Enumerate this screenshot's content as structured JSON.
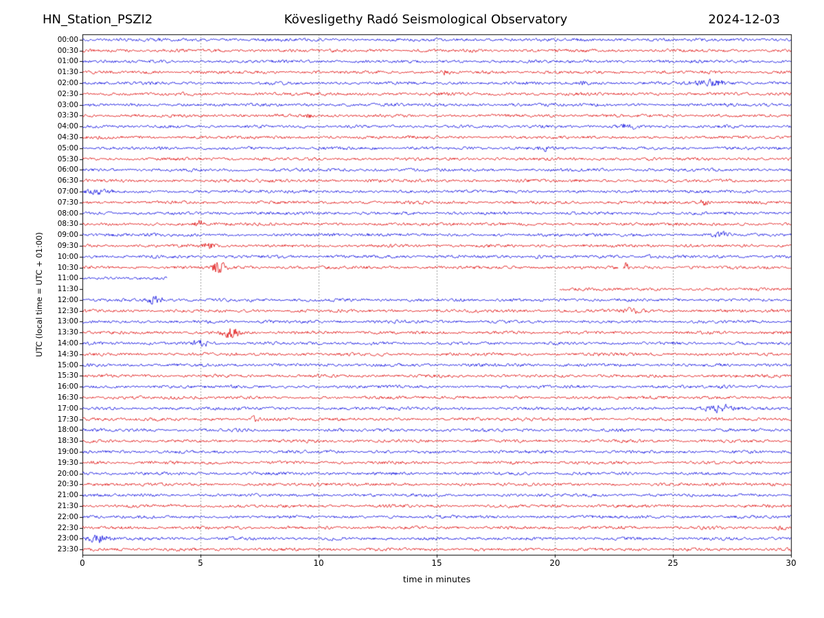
{
  "header": {
    "station": "HN_Station_PSZI2",
    "observatory": "Kövesligethy Radó Seismological Observatory",
    "date": "2024-12-03"
  },
  "chart_data": {
    "type": "line",
    "subtype": "helicorder-dayplot",
    "title": "HN_Station_PSZI2 — Kövesligethy Radó Seismological Observatory — 2024-12-03",
    "xlabel": "time in minutes",
    "ylabel": "UTC (local time = UTC + 01:00)",
    "xlim": [
      0,
      30
    ],
    "x_ticks": [
      0,
      5,
      10,
      15,
      20,
      25,
      30
    ],
    "minutes_per_row": 30,
    "grid": "vertical-dotted",
    "grid_color": "#555555",
    "frame_color": "#000000",
    "trace_colors": {
      "blue": "#0000dd",
      "red": "#dd0000"
    },
    "rows": [
      {
        "label": "00:00",
        "color": "blue"
      },
      {
        "label": "00:30",
        "color": "red"
      },
      {
        "label": "01:00",
        "color": "blue"
      },
      {
        "label": "01:30",
        "color": "red",
        "events": [
          {
            "t": 15.4,
            "amp": 1.5,
            "dur": 0.15
          }
        ]
      },
      {
        "label": "02:00",
        "color": "blue",
        "events": [
          {
            "t": 26.6,
            "amp": 1.8,
            "dur": 0.7
          },
          {
            "t": 21.2,
            "amp": 1.2,
            "dur": 0.2
          }
        ]
      },
      {
        "label": "02:30",
        "color": "red"
      },
      {
        "label": "03:00",
        "color": "blue"
      },
      {
        "label": "03:30",
        "color": "red",
        "events": [
          {
            "t": 9.6,
            "amp": 1.3,
            "dur": 0.15
          }
        ]
      },
      {
        "label": "04:00",
        "color": "blue",
        "events": [
          {
            "t": 23.0,
            "amp": 1.4,
            "dur": 0.4
          }
        ]
      },
      {
        "label": "04:30",
        "color": "red"
      },
      {
        "label": "05:00",
        "color": "blue",
        "events": [
          {
            "t": 19.5,
            "amp": 1.4,
            "dur": 0.2
          }
        ]
      },
      {
        "label": "05:30",
        "color": "red"
      },
      {
        "label": "06:00",
        "color": "blue"
      },
      {
        "label": "06:30",
        "color": "red"
      },
      {
        "label": "07:00",
        "color": "blue",
        "events": [
          {
            "t": 0.8,
            "amp": 1.2,
            "dur": 0.5
          }
        ]
      },
      {
        "label": "07:30",
        "color": "red",
        "events": [
          {
            "t": 26.3,
            "amp": 2.2,
            "dur": 0.2
          }
        ]
      },
      {
        "label": "08:00",
        "color": "blue"
      },
      {
        "label": "08:30",
        "color": "red",
        "events": [
          {
            "t": 5.0,
            "amp": 2.0,
            "dur": 0.2
          }
        ]
      },
      {
        "label": "09:00",
        "color": "blue",
        "events": [
          {
            "t": 27.0,
            "amp": 1.5,
            "dur": 0.5
          }
        ]
      },
      {
        "label": "09:30",
        "color": "red",
        "events": [
          {
            "t": 5.4,
            "amp": 2.5,
            "dur": 0.25
          }
        ]
      },
      {
        "label": "10:00",
        "color": "blue",
        "events": [
          {
            "t": 19.3,
            "amp": 1.6,
            "dur": 0.15
          },
          {
            "t": 24.0,
            "amp": 1.3,
            "dur": 0.15
          }
        ]
      },
      {
        "label": "10:30",
        "color": "red",
        "segments": [
          [
            0,
            22.7
          ],
          [
            22.9,
            30
          ]
        ],
        "events": [
          {
            "t": 5.8,
            "amp": 5.0,
            "dur": 0.25
          },
          {
            "t": 23.0,
            "amp": 3.0,
            "dur": 0.12
          }
        ]
      },
      {
        "label": "11:00",
        "color": "blue",
        "segments": [
          [
            0,
            3.6
          ]
        ]
      },
      {
        "label": "11:30",
        "color": "red",
        "segments": [
          [
            20.2,
            30
          ]
        ]
      },
      {
        "label": "12:00",
        "color": "blue",
        "events": [
          {
            "t": 3.1,
            "amp": 3.5,
            "dur": 0.3
          }
        ]
      },
      {
        "label": "12:30",
        "color": "red",
        "events": [
          {
            "t": 23.2,
            "amp": 2.2,
            "dur": 0.25
          }
        ]
      },
      {
        "label": "13:00",
        "color": "blue"
      },
      {
        "label": "13:30",
        "color": "red",
        "events": [
          {
            "t": 6.3,
            "amp": 4.0,
            "dur": 0.3
          }
        ]
      },
      {
        "label": "14:00",
        "color": "blue",
        "events": [
          {
            "t": 5.0,
            "amp": 2.0,
            "dur": 0.3
          }
        ]
      },
      {
        "label": "14:30",
        "color": "red"
      },
      {
        "label": "15:00",
        "color": "blue"
      },
      {
        "label": "15:30",
        "color": "red"
      },
      {
        "label": "16:00",
        "color": "blue"
      },
      {
        "label": "16:30",
        "color": "red"
      },
      {
        "label": "17:00",
        "color": "blue",
        "events": [
          {
            "t": 27.0,
            "amp": 2.0,
            "dur": 0.6
          }
        ]
      },
      {
        "label": "17:30",
        "color": "red",
        "events": [
          {
            "t": 7.3,
            "amp": 3.5,
            "dur": 0.15
          }
        ]
      },
      {
        "label": "18:00",
        "color": "blue"
      },
      {
        "label": "18:30",
        "color": "red"
      },
      {
        "label": "19:00",
        "color": "blue"
      },
      {
        "label": "19:30",
        "color": "red"
      },
      {
        "label": "20:00",
        "color": "blue"
      },
      {
        "label": "20:30",
        "color": "red"
      },
      {
        "label": "21:00",
        "color": "blue"
      },
      {
        "label": "21:30",
        "color": "red"
      },
      {
        "label": "22:00",
        "color": "blue"
      },
      {
        "label": "22:30",
        "color": "red",
        "events": [
          {
            "t": 29.5,
            "amp": 1.5,
            "dur": 0.2
          }
        ]
      },
      {
        "label": "23:00",
        "color": "blue",
        "events": [
          {
            "t": 0.8,
            "amp": 3.0,
            "dur": 0.5
          }
        ]
      },
      {
        "label": "23:30",
        "color": "red"
      }
    ]
  }
}
